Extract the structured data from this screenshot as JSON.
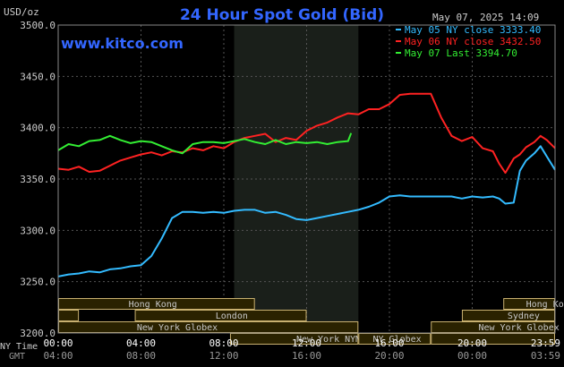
{
  "chart_data": {
    "type": "line",
    "title": "24 Hour Spot Gold (Bid)",
    "website": "www.kitco.com",
    "timestamp": "May 07, 2025 14:09",
    "y_unit_label": "USD/oz",
    "ylim": [
      3200,
      3500
    ],
    "y_ticks": [
      "3500.0",
      "3450.0",
      "3400.0",
      "3350.0",
      "3300.0",
      "3250.0",
      "3200.0"
    ],
    "x_row1_label": "NY Time",
    "x_row2_label": "GMT",
    "x_ticks_ny": [
      "00:00",
      "04:00",
      "08:00",
      "12:00",
      "16:00",
      "20:00",
      "23:59"
    ],
    "x_ticks_gmt": [
      "04:00",
      "08:00",
      "12:00",
      "16:00",
      "20:00",
      "00:00",
      "03:59"
    ],
    "x_tick_hours": [
      0,
      4,
      8,
      12,
      16,
      20,
      24
    ],
    "highlight_hours": [
      8.5,
      14.5
    ],
    "grid": true,
    "legend_position": "top-right",
    "colors": {
      "background": "#000000",
      "grid": "#555555",
      "title": "#3366ff",
      "website": "#3366ff",
      "axis_text": "#cccccc",
      "highlight": "#1a1f1a",
      "session_bar": "#2a2200",
      "session_border": "#c8b070",
      "session_text": "#c8c8c8"
    },
    "series": [
      {
        "name": "May 05 NY close 3333.40",
        "color": "#33bbff",
        "x": [
          0,
          0.5,
          1,
          1.5,
          2,
          2.5,
          3,
          3.5,
          4,
          4.5,
          5,
          5.5,
          6,
          6.5,
          7,
          7.5,
          8,
          8.5,
          9,
          9.5,
          10,
          10.5,
          11,
          11.5,
          12,
          12.5,
          13,
          13.5,
          14,
          14.5,
          15,
          15.5,
          16,
          16.5,
          17,
          17.5,
          18,
          18.5,
          19,
          19.5,
          20,
          20.5,
          21,
          21.3,
          21.6,
          22,
          22.3,
          22.6,
          23,
          23.3,
          23.6,
          24
        ],
        "y": [
          3255,
          3257,
          3258,
          3260,
          3259,
          3262,
          3263,
          3265,
          3266,
          3275,
          3292,
          3312,
          3318,
          3318,
          3317,
          3318,
          3317,
          3319,
          3320,
          3320,
          3317,
          3318,
          3315,
          3311,
          3310,
          3312,
          3314,
          3316,
          3318,
          3320,
          3323,
          3327,
          3333,
          3334,
          3333,
          3333,
          3333,
          3333,
          3333,
          3331,
          3333,
          3332,
          3333,
          3331,
          3326,
          3327,
          3358,
          3368,
          3375,
          3382,
          3372,
          3359
        ]
      },
      {
        "name": "May 06 NY close 3432.50",
        "color": "#ff2222",
        "x": [
          0,
          0.5,
          1,
          1.5,
          2,
          2.5,
          3,
          3.5,
          4,
          4.5,
          5,
          5.5,
          6,
          6.5,
          7,
          7.5,
          8,
          8.5,
          9,
          9.5,
          10,
          10.5,
          11,
          11.5,
          12,
          12.5,
          13,
          13.5,
          14,
          14.5,
          15,
          15.5,
          16,
          16.5,
          17,
          17.5,
          18,
          18.5,
          19,
          19.5,
          20,
          20.5,
          21,
          21.3,
          21.6,
          22,
          22.3,
          22.6,
          23,
          23.3,
          23.6,
          24
        ],
        "y": [
          3360,
          3359,
          3362,
          3357,
          3358,
          3363,
          3368,
          3371,
          3374,
          3376,
          3373,
          3377,
          3376,
          3380,
          3378,
          3382,
          3380,
          3386,
          3390,
          3392,
          3394,
          3386,
          3390,
          3388,
          3397,
          3402,
          3405,
          3410,
          3414,
          3413,
          3418,
          3418,
          3423,
          3432,
          3433,
          3433,
          3433,
          3410,
          3392,
          3387,
          3391,
          3380,
          3377,
          3365,
          3356,
          3370,
          3374,
          3381,
          3386,
          3392,
          3388,
          3380
        ]
      },
      {
        "name": "May 07 Last 3394.70",
        "color": "#33ee33",
        "x": [
          0,
          0.5,
          1,
          1.5,
          2,
          2.5,
          3,
          3.5,
          4,
          4.5,
          5,
          5.5,
          6,
          6.5,
          7,
          7.5,
          8,
          8.5,
          9,
          9.5,
          10,
          10.5,
          11,
          11.5,
          12,
          12.5,
          13,
          13.5,
          14,
          14.15
        ],
        "y": [
          3378,
          3384,
          3382,
          3387,
          3388,
          3392,
          3388,
          3385,
          3387,
          3386,
          3382,
          3378,
          3375,
          3384,
          3386,
          3386,
          3385,
          3387,
          3389,
          3386,
          3384,
          3388,
          3384,
          3386,
          3385,
          3386,
          3384,
          3386,
          3387,
          3394.7
        ]
      }
    ],
    "sessions": [
      {
        "label": "Hong Kong",
        "row": 0,
        "segments": [
          [
            0,
            9.5
          ]
        ],
        "label_hour": 3.4
      },
      {
        "label": "London",
        "row": 1,
        "segments": [
          [
            0,
            1
          ],
          [
            3.7,
            12
          ]
        ],
        "label_hour": 7.6
      },
      {
        "label": "New York Globex",
        "row": 2,
        "segments": [
          [
            0,
            14.5
          ]
        ],
        "label_hour": 3.8
      },
      {
        "label": "New York NYMEX",
        "row": 3,
        "segments": [
          [
            8.3,
            14.5
          ]
        ],
        "label_hour": 11.5
      },
      {
        "label": "NY Globex",
        "row": 3,
        "segments": [
          [
            14.5,
            18
          ]
        ],
        "label_hour": 15.2
      },
      {
        "label": "Hong Kong",
        "row": 0,
        "segments": [
          [
            21.5,
            24
          ]
        ],
        "label_hour": 22.6
      },
      {
        "label": "Sydney",
        "row": 1,
        "segments": [
          [
            19.5,
            24
          ]
        ],
        "label_hour": 21.7
      },
      {
        "label": "New York Globex",
        "row": 2,
        "segments": [
          [
            18,
            24
          ]
        ],
        "label_hour": 20.3
      },
      {
        "label": "",
        "row": 3,
        "segments": [
          [
            18,
            24
          ]
        ],
        "label_hour": 21
      }
    ]
  }
}
